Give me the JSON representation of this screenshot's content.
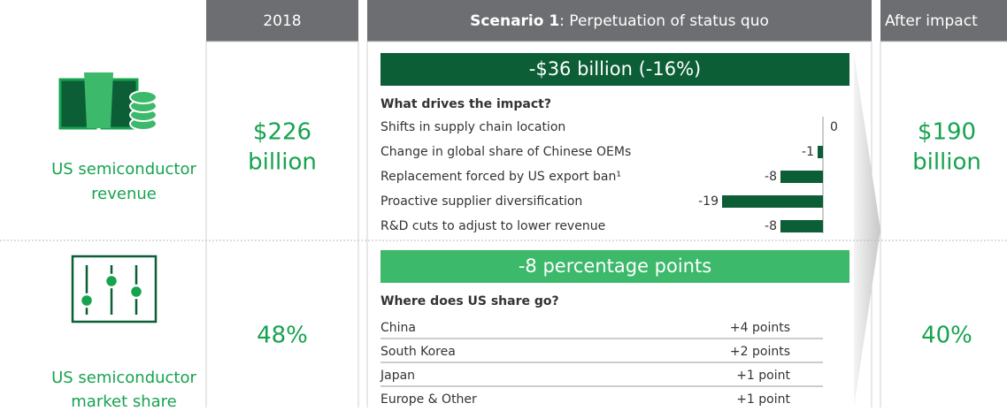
{
  "header": {
    "year": "2018",
    "scenario_bold": "Scenario 1",
    "scenario_rest": ": Perpetuation of status quo",
    "after": "After impact"
  },
  "revenue": {
    "label_lines": [
      "US semiconductor",
      "revenue"
    ],
    "before_lines": [
      "$226",
      "billion"
    ],
    "after_lines": [
      "$190",
      "billion"
    ],
    "headline": "-$36 billion (-16%)",
    "question": "What drives the impact?",
    "drivers": [
      {
        "label": "Shifts in supply chain location",
        "value": 0
      },
      {
        "label": "Change in global share of Chinese OEMs",
        "value": -1
      },
      {
        "label": "Replacement forced by US export ban¹",
        "value": -8
      },
      {
        "label": "Proactive supplier diversification",
        "value": -19
      },
      {
        "label": "R&D cuts to adjust to lower revenue",
        "value": -8
      }
    ]
  },
  "share": {
    "label_lines": [
      "US semiconductor",
      "market share"
    ],
    "before": "48%",
    "after": "40%",
    "headline": "-8 percentage points",
    "question": "Where does US share go?",
    "rows": [
      [
        "China",
        "+4 points"
      ],
      [
        "South Korea",
        "+2 points"
      ],
      [
        "Japan",
        "+1 point"
      ],
      [
        "Europe & Other",
        "+1 point"
      ]
    ]
  }
}
